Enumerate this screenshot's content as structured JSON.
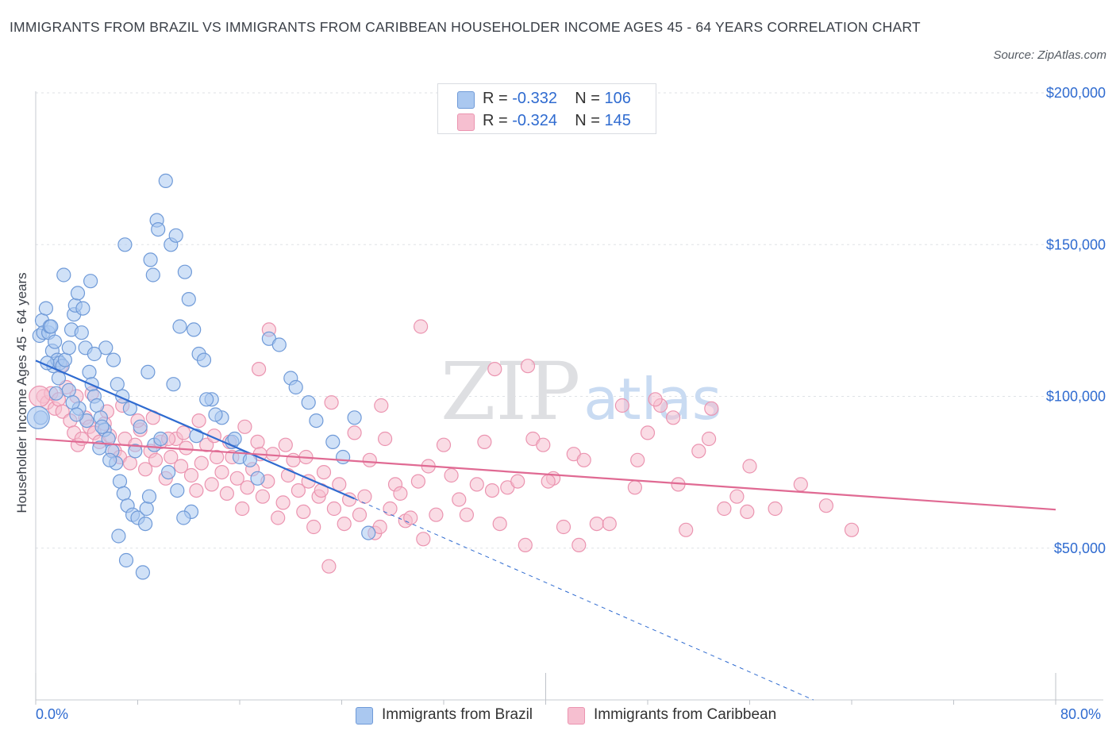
{
  "title": "IMMIGRANTS FROM BRAZIL VS IMMIGRANTS FROM CARIBBEAN HOUSEHOLDER INCOME AGES 45 - 64 YEARS CORRELATION CHART",
  "source": "Source: ZipAtlas.com",
  "watermark": "ZIPatlas",
  "colors": {
    "brazil_fill": "#aac8f0",
    "brazil_stroke": "#6f9ad8",
    "brazil_line": "#2f6bd0",
    "caribbean_fill": "#f6bfd0",
    "caribbean_stroke": "#eb94b0",
    "caribbean_line": "#e06a93",
    "axis_text": "#2f6bd0",
    "grid": "#dfe2e6"
  },
  "legend": {
    "rows": [
      {
        "r_label": "R = ",
        "r_value": "-0.332",
        "n_label": "N = ",
        "n_value": "106"
      },
      {
        "r_label": "R = ",
        "r_value": "-0.324",
        "n_label": "N = ",
        "n_value": "145"
      }
    ]
  },
  "chart_data": {
    "type": "scatter",
    "title": "IMMIGRANTS FROM BRAZIL VS IMMIGRANTS FROM CARIBBEAN HOUSEHOLDER INCOME AGES 45 - 64 YEARS CORRELATION CHART",
    "xlabel": "",
    "ylabel": "Householder Income Ages 45 - 64 years",
    "xlim": [
      0,
      80
    ],
    "ylim": [
      0,
      200000
    ],
    "x_tick_labels": [
      "0.0%",
      "80.0%"
    ],
    "y_tick_labels": [
      "$50,000",
      "$100,000",
      "$150,000",
      "$200,000"
    ],
    "y_ticks": [
      50000,
      100000,
      150000,
      200000
    ],
    "grid": true,
    "legend_position": "top-center",
    "series": [
      {
        "name": "Immigrants from Brazil",
        "r": -0.332,
        "n": 106,
        "trend": {
          "x0": 0,
          "y0": 111800,
          "x1": 25,
          "y1": 66300,
          "dash_to_x": 61,
          "dash_to_y": 0
        },
        "points": [
          [
            0.3,
            120000
          ],
          [
            0.5,
            125000
          ],
          [
            0.6,
            121000
          ],
          [
            0.8,
            129000
          ],
          [
            1.0,
            121000
          ],
          [
            1.1,
            123000
          ],
          [
            1.3,
            115000
          ],
          [
            1.4,
            110000
          ],
          [
            1.5,
            118000
          ],
          [
            1.7,
            112000
          ],
          [
            1.9,
            111000
          ],
          [
            2.1,
            110000
          ],
          [
            2.3,
            112000
          ],
          [
            2.6,
            116000
          ],
          [
            2.8,
            122000
          ],
          [
            3.0,
            127000
          ],
          [
            3.1,
            130000
          ],
          [
            3.3,
            134000
          ],
          [
            3.6,
            121000
          ],
          [
            3.9,
            116000
          ],
          [
            4.2,
            108000
          ],
          [
            4.4,
            104000
          ],
          [
            4.6,
            100000
          ],
          [
            4.8,
            97000
          ],
          [
            5.1,
            93000
          ],
          [
            5.4,
            89000
          ],
          [
            5.7,
            86000
          ],
          [
            6.0,
            82000
          ],
          [
            6.3,
            78000
          ],
          [
            6.6,
            72000
          ],
          [
            6.9,
            68000
          ],
          [
            7.2,
            64000
          ],
          [
            7.6,
            61000
          ],
          [
            8.0,
            60000
          ],
          [
            8.4,
            42000
          ],
          [
            8.6,
            58000
          ],
          [
            8.8,
            108000
          ],
          [
            9.0,
            145000
          ],
          [
            9.2,
            140000
          ],
          [
            9.5,
            158000
          ],
          [
            9.6,
            155000
          ],
          [
            10.2,
            171000
          ],
          [
            10.6,
            150000
          ],
          [
            11.0,
            153000
          ],
          [
            11.3,
            123000
          ],
          [
            11.7,
            141000
          ],
          [
            12.0,
            132000
          ],
          [
            12.4,
            122000
          ],
          [
            12.8,
            114000
          ],
          [
            13.2,
            112000
          ],
          [
            13.8,
            99000
          ],
          [
            14.6,
            93000
          ],
          [
            15.4,
            85000
          ],
          [
            16.0,
            80000
          ],
          [
            16.8,
            79000
          ],
          [
            17.4,
            73000
          ],
          [
            18.3,
            119000
          ],
          [
            19.1,
            117000
          ],
          [
            20.0,
            106000
          ],
          [
            20.4,
            103000
          ],
          [
            21.4,
            98000
          ],
          [
            22.0,
            92000
          ],
          [
            23.3,
            85000
          ],
          [
            24.1,
            80000
          ],
          [
            25.0,
            93000
          ],
          [
            26.1,
            55000
          ],
          [
            7.0,
            150000
          ],
          [
            4.3,
            138000
          ],
          [
            2.2,
            140000
          ],
          [
            1.2,
            123000
          ],
          [
            0.9,
            111000
          ],
          [
            3.7,
            129000
          ],
          [
            5.5,
            116000
          ],
          [
            6.1,
            112000
          ],
          [
            6.8,
            100000
          ],
          [
            7.4,
            96000
          ],
          [
            8.2,
            90000
          ],
          [
            9.3,
            84000
          ],
          [
            10.4,
            75000
          ],
          [
            11.1,
            69000
          ],
          [
            12.2,
            62000
          ],
          [
            13.4,
            99000
          ],
          [
            3.4,
            96000
          ],
          [
            4.0,
            92000
          ],
          [
            5.0,
            83000
          ],
          [
            5.8,
            79000
          ],
          [
            6.5,
            54000
          ],
          [
            7.1,
            46000
          ],
          [
            8.7,
            63000
          ],
          [
            9.8,
            86000
          ],
          [
            10.8,
            104000
          ],
          [
            12.6,
            87000
          ],
          [
            14.1,
            94000
          ],
          [
            15.6,
            86000
          ],
          [
            2.6,
            102000
          ],
          [
            1.6,
            101000
          ],
          [
            0.4,
            93000
          ],
          [
            1.8,
            106000
          ],
          [
            2.9,
            98000
          ],
          [
            3.2,
            94000
          ],
          [
            4.6,
            114000
          ],
          [
            5.2,
            90000
          ],
          [
            6.4,
            104000
          ],
          [
            7.8,
            82000
          ],
          [
            8.9,
            67000
          ],
          [
            11.6,
            60000
          ]
        ]
      },
      {
        "name": "Immigrants from Caribbean",
        "r": -0.324,
        "n": 145,
        "trend": {
          "x0": 0,
          "y0": 86000,
          "x1": 80,
          "y1": 62700
        },
        "points": [
          [
            0.6,
            100000
          ],
          [
            0.9,
            98000
          ],
          [
            1.2,
            101000
          ],
          [
            1.5,
            96000
          ],
          [
            1.8,
            99000
          ],
          [
            2.1,
            95000
          ],
          [
            2.4,
            103000
          ],
          [
            2.7,
            92000
          ],
          [
            3.0,
            88000
          ],
          [
            3.3,
            84000
          ],
          [
            3.6,
            86000
          ],
          [
            3.9,
            93000
          ],
          [
            4.2,
            90000
          ],
          [
            4.6,
            88000
          ],
          [
            5.0,
            85000
          ],
          [
            5.4,
            91000
          ],
          [
            5.8,
            87000
          ],
          [
            6.2,
            82000
          ],
          [
            6.6,
            80000
          ],
          [
            7.0,
            86000
          ],
          [
            7.4,
            78000
          ],
          [
            7.8,
            84000
          ],
          [
            8.2,
            89000
          ],
          [
            8.6,
            76000
          ],
          [
            9.0,
            82000
          ],
          [
            9.4,
            79000
          ],
          [
            9.8,
            85000
          ],
          [
            10.2,
            73000
          ],
          [
            10.6,
            80000
          ],
          [
            11.0,
            86000
          ],
          [
            11.4,
            77000
          ],
          [
            11.8,
            83000
          ],
          [
            12.2,
            74000
          ],
          [
            12.6,
            69000
          ],
          [
            13.0,
            78000
          ],
          [
            13.4,
            84000
          ],
          [
            13.8,
            71000
          ],
          [
            14.2,
            80000
          ],
          [
            14.6,
            75000
          ],
          [
            15.0,
            68000
          ],
          [
            15.4,
            80000
          ],
          [
            15.8,
            73000
          ],
          [
            16.2,
            63000
          ],
          [
            16.6,
            70000
          ],
          [
            17.0,
            76000
          ],
          [
            17.4,
            85000
          ],
          [
            17.8,
            67000
          ],
          [
            18.2,
            72000
          ],
          [
            18.6,
            81000
          ],
          [
            19.0,
            60000
          ],
          [
            19.4,
            65000
          ],
          [
            19.8,
            74000
          ],
          [
            20.2,
            79000
          ],
          [
            20.6,
            69000
          ],
          [
            21.0,
            62000
          ],
          [
            21.4,
            72000
          ],
          [
            21.8,
            57000
          ],
          [
            22.2,
            67000
          ],
          [
            22.6,
            75000
          ],
          [
            23.0,
            44000
          ],
          [
            23.4,
            63000
          ],
          [
            23.8,
            71000
          ],
          [
            24.2,
            58000
          ],
          [
            24.6,
            66000
          ],
          [
            25.0,
            88000
          ],
          [
            25.4,
            61000
          ],
          [
            25.8,
            67000
          ],
          [
            26.2,
            79000
          ],
          [
            26.6,
            55000
          ],
          [
            27.0,
            57000
          ],
          [
            27.4,
            86000
          ],
          [
            27.8,
            63000
          ],
          [
            28.2,
            71000
          ],
          [
            28.6,
            68000
          ],
          [
            29.0,
            59000
          ],
          [
            29.4,
            60000
          ],
          [
            30.0,
            72000
          ],
          [
            30.4,
            53000
          ],
          [
            30.8,
            77000
          ],
          [
            31.4,
            61000
          ],
          [
            32.0,
            84000
          ],
          [
            32.6,
            74000
          ],
          [
            33.2,
            66000
          ],
          [
            33.8,
            61000
          ],
          [
            34.6,
            71000
          ],
          [
            35.2,
            85000
          ],
          [
            35.8,
            69000
          ],
          [
            36.4,
            58000
          ],
          [
            37.0,
            70000
          ],
          [
            37.8,
            72000
          ],
          [
            38.4,
            51000
          ],
          [
            39.0,
            86000
          ],
          [
            39.8,
            84000
          ],
          [
            40.6,
            73000
          ],
          [
            41.4,
            57000
          ],
          [
            42.2,
            81000
          ],
          [
            43.0,
            79000
          ],
          [
            44.0,
            58000
          ],
          [
            45.0,
            58000
          ],
          [
            46.0,
            97000
          ],
          [
            47.0,
            70000
          ],
          [
            48.0,
            88000
          ],
          [
            49.0,
            97000
          ],
          [
            50.0,
            93000
          ],
          [
            51.0,
            56000
          ],
          [
            52.0,
            82000
          ],
          [
            53.0,
            96000
          ],
          [
            54.0,
            63000
          ],
          [
            55.0,
            67000
          ],
          [
            56.0,
            77000
          ],
          [
            58.0,
            63000
          ],
          [
            60.0,
            71000
          ],
          [
            62.0,
            64000
          ],
          [
            64.0,
            56000
          ],
          [
            17.5,
            109000
          ],
          [
            18.3,
            122000
          ],
          [
            30.2,
            123000
          ],
          [
            36.0,
            109000
          ],
          [
            38.6,
            110000
          ],
          [
            23.2,
            98000
          ],
          [
            27.1,
            97000
          ],
          [
            40.2,
            72000
          ],
          [
            42.6,
            51000
          ],
          [
            47.2,
            79000
          ],
          [
            48.6,
            99000
          ],
          [
            50.4,
            71000
          ],
          [
            52.8,
            86000
          ],
          [
            55.8,
            62000
          ],
          [
            2.0,
            110000
          ],
          [
            3.2,
            100000
          ],
          [
            4.4,
            101000
          ],
          [
            5.6,
            95000
          ],
          [
            6.8,
            97000
          ],
          [
            8.0,
            92000
          ],
          [
            9.2,
            93000
          ],
          [
            10.4,
            86000
          ],
          [
            11.6,
            88000
          ],
          [
            12.8,
            92000
          ],
          [
            14.0,
            87000
          ],
          [
            15.2,
            85000
          ],
          [
            16.4,
            90000
          ],
          [
            17.6,
            81000
          ],
          [
            19.6,
            84000
          ],
          [
            21.2,
            80000
          ],
          [
            22.4,
            69000
          ]
        ]
      }
    ]
  },
  "axes": {
    "x_min_label": "0.0%",
    "x_max_label": "80.0%",
    "y_tick_labels": [
      "$200,000",
      "$150,000",
      "$100,000",
      "$50,000"
    ],
    "y_label": "Householder Income Ages 45 - 64 years"
  },
  "bottom_legend": {
    "brazil": "Immigrants from Brazil",
    "caribbean": "Immigrants from Caribbean"
  }
}
